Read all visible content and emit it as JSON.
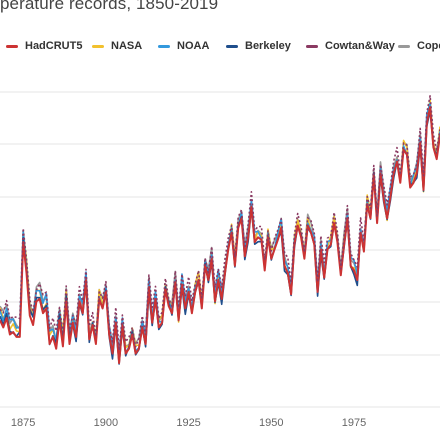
{
  "title": "perature records, 1850-2019",
  "chart_data": {
    "type": "line",
    "title": "perature records, 1850-2019",
    "xlabel": "",
    "ylabel": "",
    "x_ticks": [
      "1875",
      "1900",
      "1925",
      "1950",
      "1975"
    ],
    "xlim": [
      1868,
      2001
    ],
    "ylim": [
      -0.75,
      0.6
    ],
    "grid": true,
    "legend_position": "top",
    "years": [
      1868,
      1869,
      1870,
      1871,
      1872,
      1873,
      1874,
      1875,
      1876,
      1877,
      1878,
      1879,
      1880,
      1881,
      1882,
      1883,
      1884,
      1885,
      1886,
      1887,
      1888,
      1889,
      1890,
      1891,
      1892,
      1893,
      1894,
      1895,
      1896,
      1897,
      1898,
      1899,
      1900,
      1901,
      1902,
      1903,
      1904,
      1905,
      1906,
      1907,
      1908,
      1909,
      1910,
      1911,
      1912,
      1913,
      1914,
      1915,
      1916,
      1917,
      1918,
      1919,
      1920,
      1921,
      1922,
      1923,
      1924,
      1925,
      1926,
      1927,
      1928,
      1929,
      1930,
      1931,
      1932,
      1933,
      1934,
      1935,
      1936,
      1937,
      1938,
      1939,
      1940,
      1941,
      1942,
      1943,
      1944,
      1945,
      1946,
      1947,
      1948,
      1949,
      1950,
      1951,
      1952,
      1953,
      1954,
      1955,
      1956,
      1957,
      1958,
      1959,
      1960,
      1961,
      1962,
      1963,
      1964,
      1965,
      1966,
      1967,
      1968,
      1969,
      1970,
      1971,
      1972,
      1973,
      1974,
      1975,
      1976,
      1977,
      1978,
      1979,
      1980,
      1981,
      1982,
      1983,
      1984,
      1985,
      1986,
      1987,
      1988,
      1989,
      1990,
      1991,
      1992,
      1993,
      1994,
      1995,
      1996,
      1997,
      1998,
      1999,
      2000,
      2001
    ],
    "series": [
      {
        "name": "HadCRUT5",
        "color": "#cc3333",
        "values": [
          -0.38,
          -0.41,
          -0.37,
          -0.44,
          -0.43,
          -0.45,
          -0.45,
          -0.05,
          -0.18,
          -0.36,
          -0.4,
          -0.3,
          -0.29,
          -0.35,
          -0.33,
          -0.48,
          -0.45,
          -0.5,
          -0.38,
          -0.49,
          -0.3,
          -0.48,
          -0.39,
          -0.45,
          -0.3,
          -0.35,
          -0.21,
          -0.46,
          -0.4,
          -0.48,
          -0.29,
          -0.33,
          -0.26,
          -0.44,
          -0.52,
          -0.39,
          -0.56,
          -0.4,
          -0.52,
          -0.5,
          -0.44,
          -0.52,
          -0.5,
          -0.41,
          -0.48,
          -0.24,
          -0.39,
          -0.29,
          -0.41,
          -0.39,
          -0.25,
          -0.32,
          -0.35,
          -0.22,
          -0.38,
          -0.23,
          -0.33,
          -0.26,
          -0.35,
          -0.26,
          -0.21,
          -0.33,
          -0.15,
          -0.21,
          -0.12,
          -0.3,
          -0.21,
          -0.29,
          -0.18,
          -0.08,
          -0.01,
          -0.15,
          0.01,
          0.05,
          -0.11,
          -0.03,
          0.1,
          -0.05,
          -0.03,
          -0.04,
          -0.17,
          -0.03,
          -0.12,
          -0.08,
          -0.04,
          0.01,
          -0.15,
          -0.18,
          -0.27,
          -0.06,
          0.02,
          -0.03,
          -0.12,
          0.02,
          -0.01,
          -0.06,
          -0.26,
          -0.08,
          -0.2,
          -0.08,
          -0.06,
          0.03,
          -0.05,
          -0.19,
          -0.06,
          0.05,
          -0.15,
          -0.17,
          -0.21,
          -0.01,
          -0.09,
          0.11,
          0.05,
          0.23,
          0.03,
          0.24,
          0.13,
          0.05,
          0.14,
          0.24,
          0.29,
          0.2,
          0.34,
          0.32,
          0.18,
          0.2,
          0.24,
          0.37,
          0.17,
          0.45,
          0.52,
          0.35,
          0.3,
          0.4
        ]
      },
      {
        "name": "NASA",
        "color": "#f2c12e",
        "offsets_from_HadCRUT5": "similar"
      },
      {
        "name": "NOAA",
        "color": "#3399dd"
      },
      {
        "name": "Berkeley",
        "color": "#1f4e8c"
      },
      {
        "name": "Cowtan&Way",
        "color": "#8b3a62"
      },
      {
        "name": "Cope",
        "color": "#999999"
      }
    ]
  },
  "legend": [
    {
      "label": "HadCRUT5",
      "color": "#cc3333"
    },
    {
      "label": "NASA",
      "color": "#f2c12e"
    },
    {
      "label": "NOAA",
      "color": "#3399dd"
    },
    {
      "label": "Berkeley",
      "color": "#1f4e8c"
    },
    {
      "label": "Cowtan&Way",
      "color": "#8b3a62"
    },
    {
      "label": "Cope",
      "color": "#999999"
    }
  ]
}
